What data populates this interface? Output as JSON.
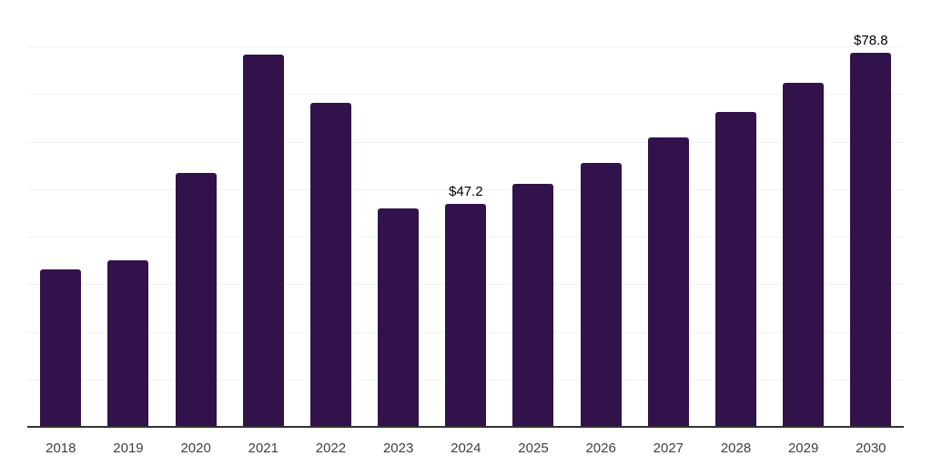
{
  "chart_data": {
    "type": "bar",
    "title": "",
    "xlabel": "",
    "ylabel": "",
    "categories": [
      "2018",
      "2019",
      "2020",
      "2021",
      "2022",
      "2023",
      "2024",
      "2025",
      "2026",
      "2027",
      "2028",
      "2029",
      "2030"
    ],
    "values": [
      33.3,
      35.3,
      53.6,
      78.5,
      68.4,
      46.2,
      47.2,
      51.4,
      55.7,
      61.1,
      66.5,
      72.5,
      78.8
    ],
    "data_labels": [
      "",
      "",
      "",
      "",
      "",
      "",
      "$47.2",
      "",
      "",
      "",
      "",
      "",
      "$78.8"
    ],
    "ylim": [
      0,
      90
    ],
    "grid_interval": 10,
    "grid": true,
    "legend": false,
    "colors": {
      "bar": "#32124a",
      "gridline": "#f2f2f2",
      "axis": "#333333",
      "tick_label": "#404040",
      "value_label": "#000000",
      "background": "#ffffff"
    }
  }
}
